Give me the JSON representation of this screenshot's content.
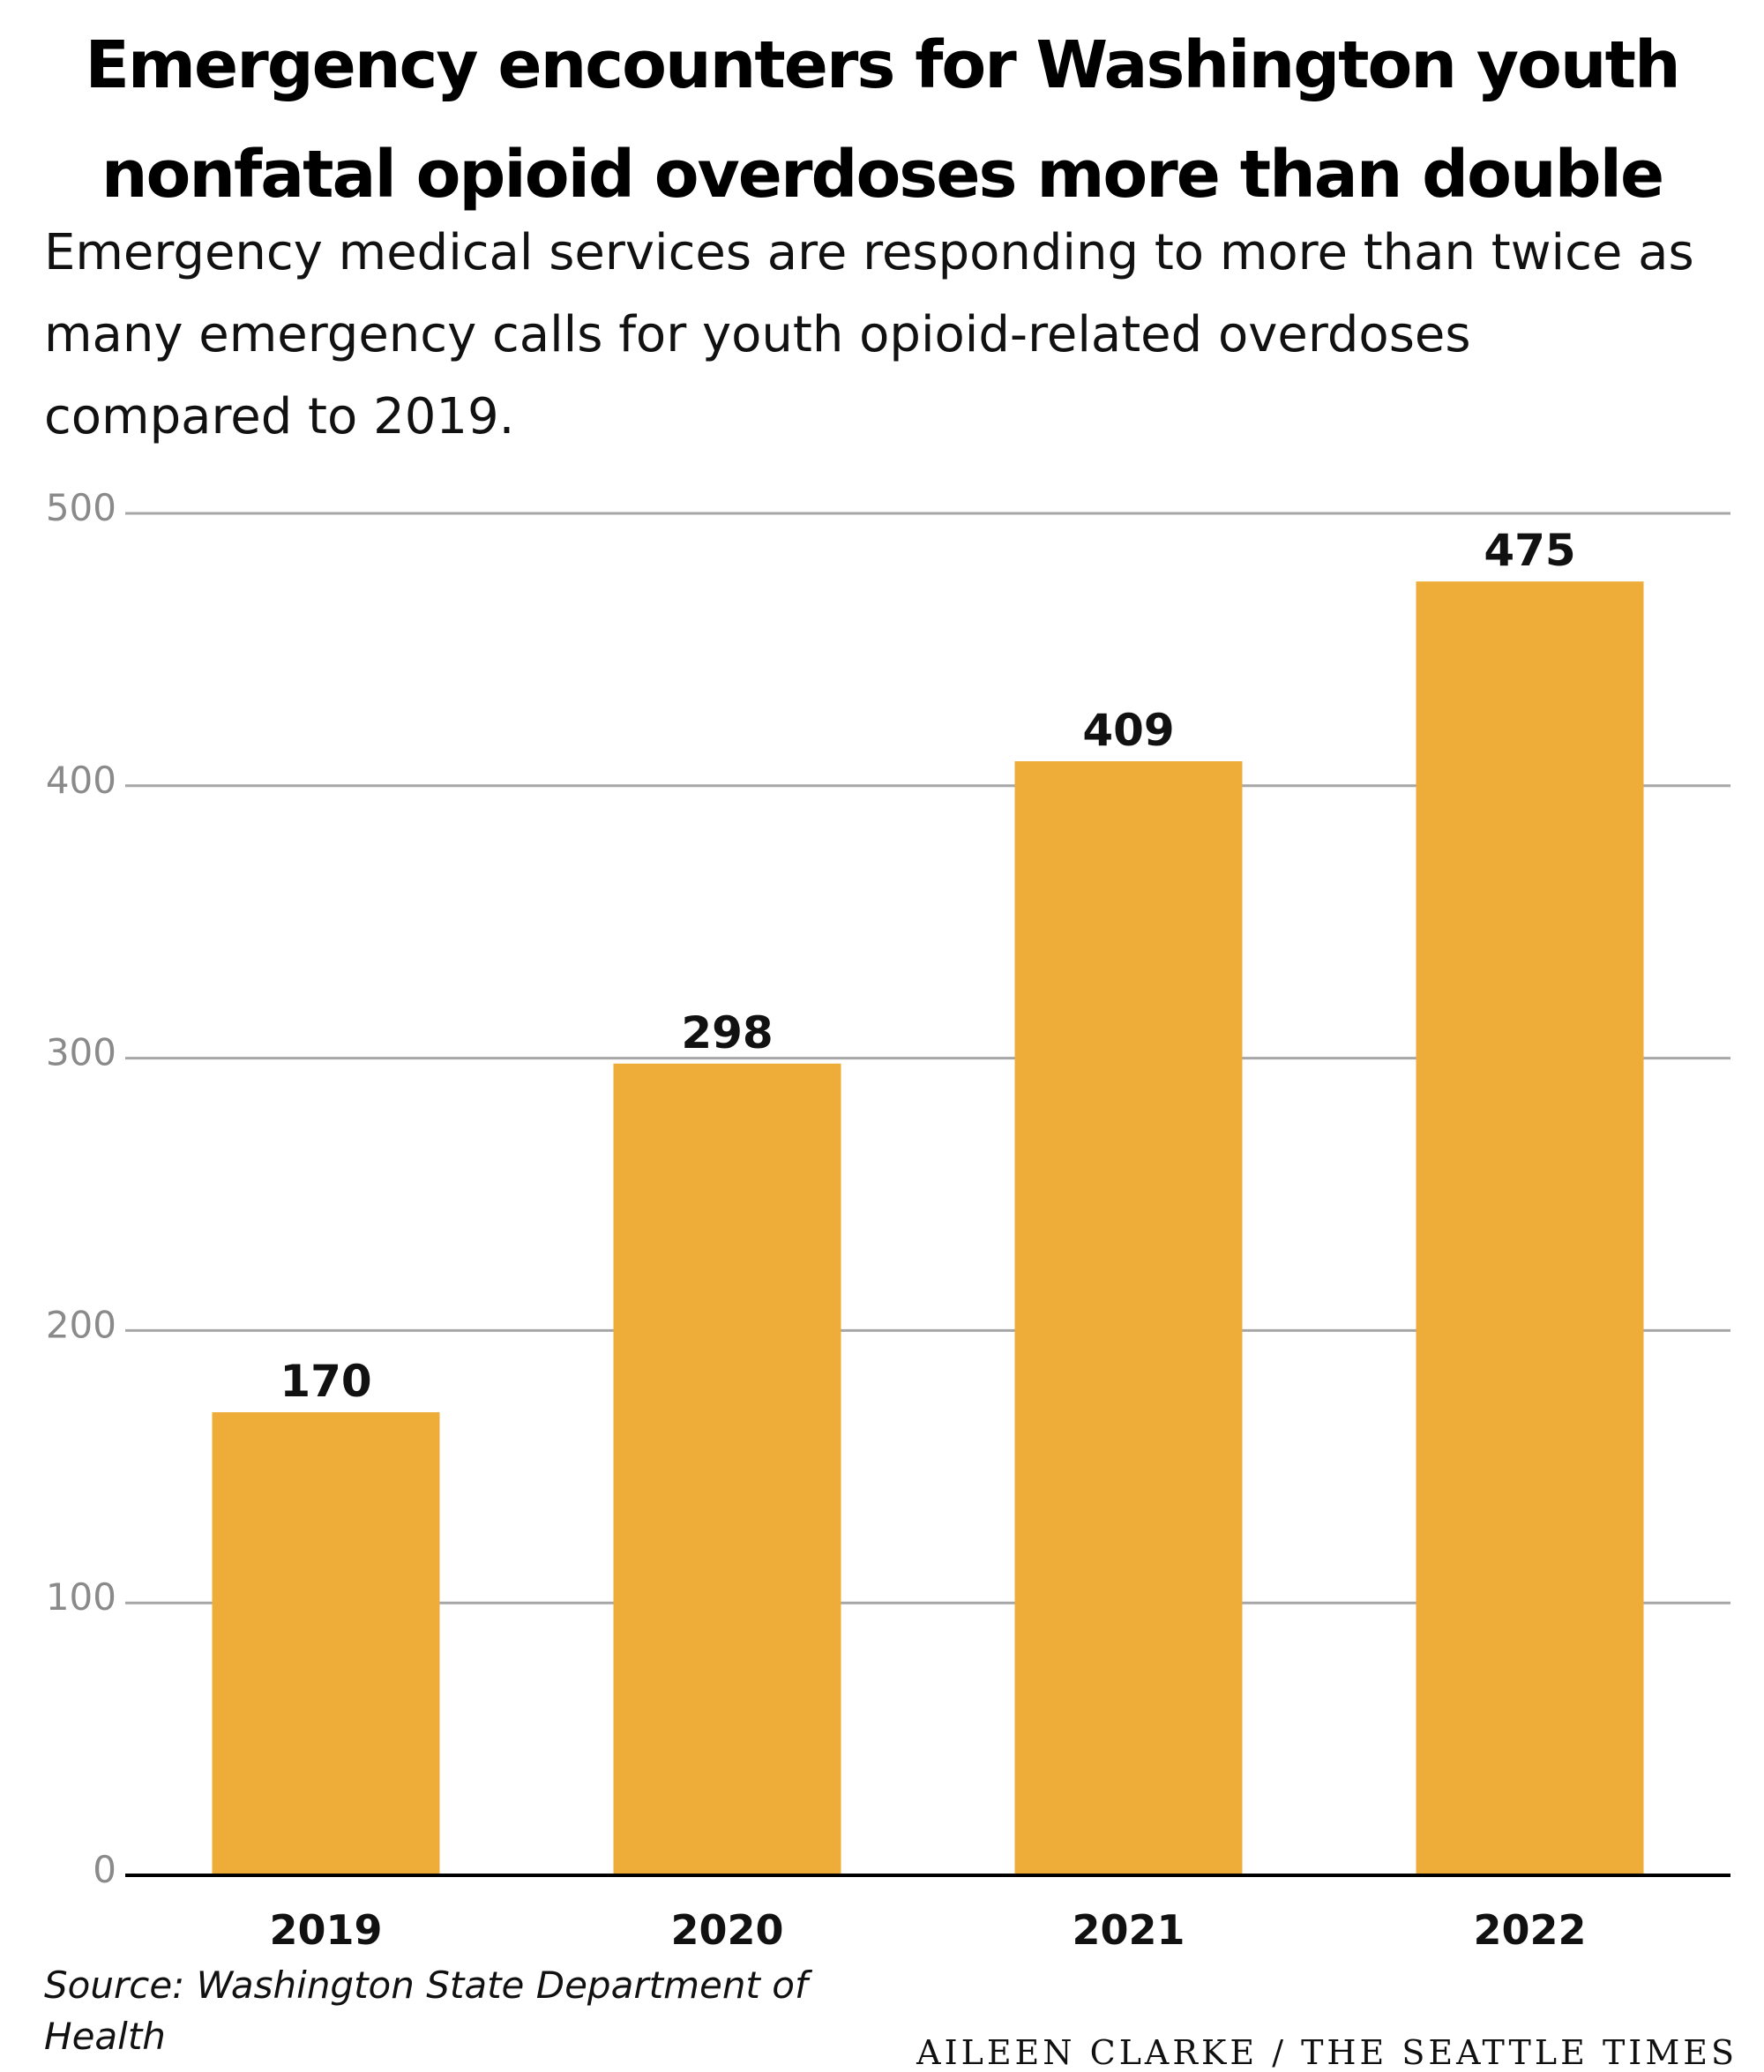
{
  "header": {
    "title": "Emergency encounters for Washington youth nonfatal opioid overdoses more than double",
    "subtitle": "Emergency medical services are responding to more than twice as many emergency calls for youth opioid-related overdoses compared to 2019."
  },
  "footer": {
    "source": "Source: Washington State Department of Health",
    "credit": "AILEEN CLARKE / THE SEATTLE TIMES"
  },
  "chart_data": {
    "type": "bar",
    "title": "Emergency encounters for Washington youth nonfatal opioid overdoses more than double",
    "subtitle": "Emergency medical services are responding to more than twice as many emergency calls for youth opioid-related overdoses compared to 2019.",
    "categories": [
      "2019",
      "2020",
      "2021",
      "2022"
    ],
    "values": [
      170,
      298,
      409,
      475
    ],
    "xlabel": "",
    "ylabel": "",
    "ylim": [
      0,
      500
    ],
    "yticks": [
      0,
      100,
      200,
      300,
      400,
      500
    ],
    "grid": true,
    "data_labels": true,
    "bar_color": "#EEAD38",
    "gridline_color": "#A6A6A6",
    "tick_label_color": "#8A8A8A"
  }
}
